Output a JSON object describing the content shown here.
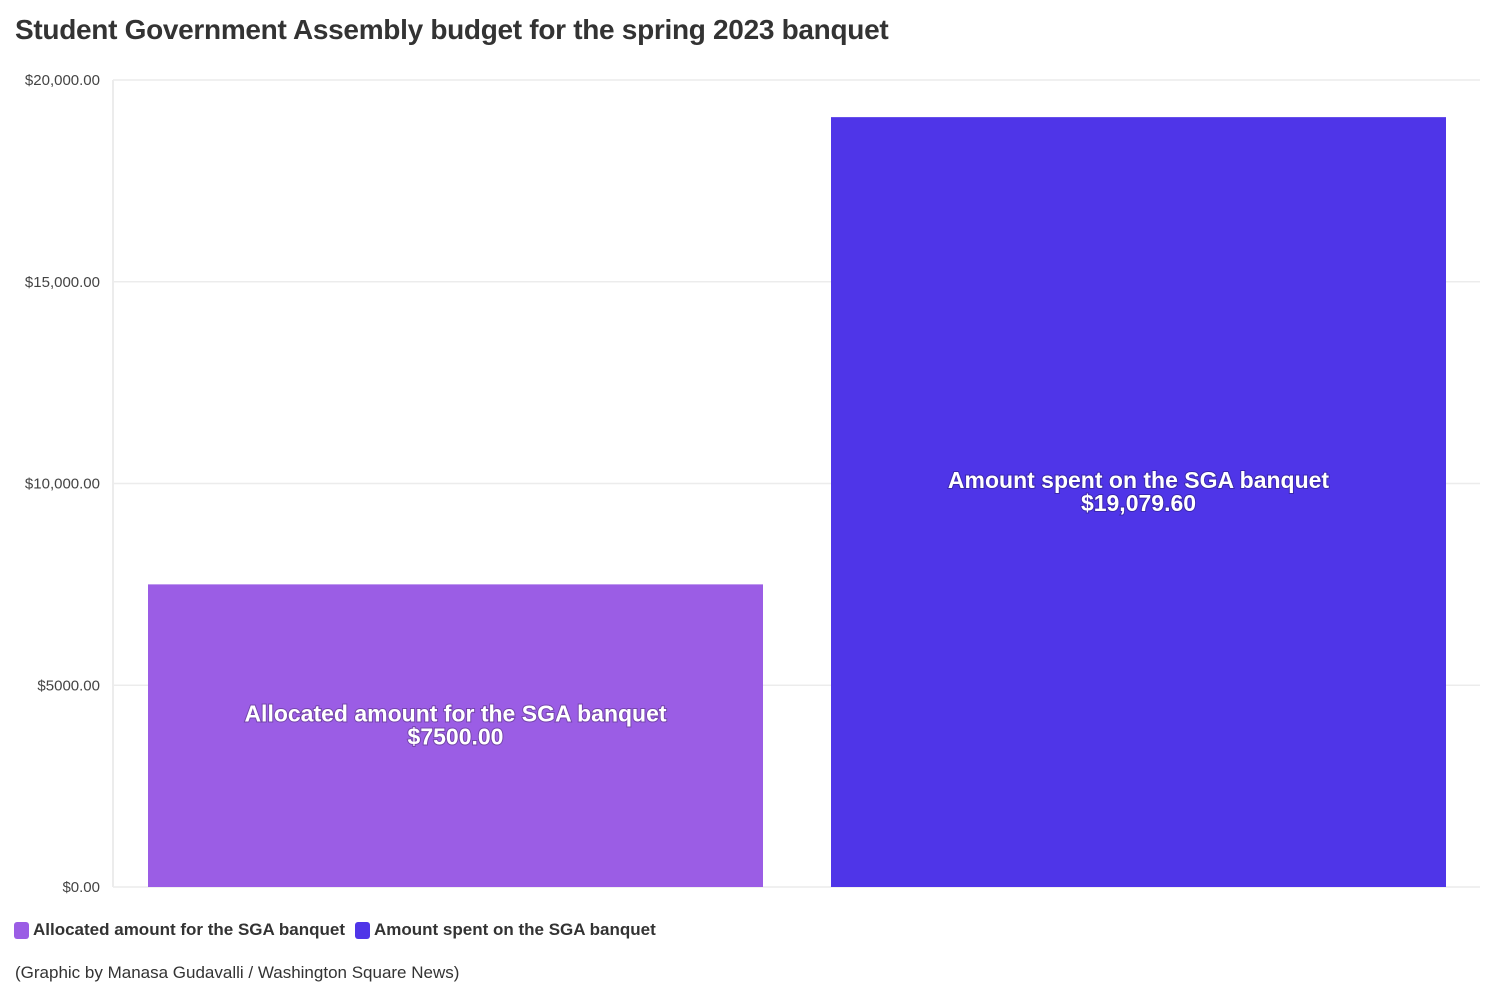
{
  "chart_data": {
    "type": "bar",
    "title": "Student Government Assembly budget for the spring 2023 banquet",
    "categories": [
      "Allocated amount for the SGA banquet",
      "Amount spent on the SGA banquet"
    ],
    "values": [
      7500.0,
      19079.6
    ],
    "value_labels": [
      "$7500.00",
      "$19,079.60"
    ],
    "colors": [
      "#9b5de5",
      "#4f35e8"
    ],
    "ylim": [
      0,
      20000
    ],
    "yticks": [
      0,
      5000,
      10000,
      15000,
      20000
    ],
    "ytick_labels": [
      "$0.00",
      "$5000.00",
      "$10,000.00",
      "$15,000.00",
      "$20,000.00"
    ],
    "grid": true,
    "legend_position": "bottom-left",
    "legend": [
      {
        "label": "Allocated amount for the SGA banquet",
        "color": "#9b5de5"
      },
      {
        "label": "Amount spent on the SGA banquet",
        "color": "#4f35e8"
      }
    ]
  },
  "footer": {
    "credit": "(Graphic by Manasa Gudavalli / Washington Square News)"
  }
}
